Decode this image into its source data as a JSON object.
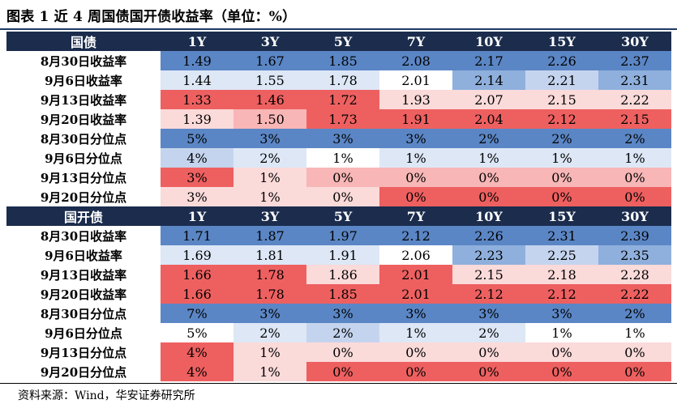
{
  "title": "图表 1  近 4 周国债国开债收益率（单位：%）",
  "source": "资料来源：Wind，华安证券研究所",
  "colors": {
    "header_bg": "#1b2c4d",
    "blue_dark": "#5b86c5",
    "blue_mid": "#8fb0dd",
    "blue_light": "#c5d4ee",
    "blue_pale": "#dde7f6",
    "white": "#ffffff",
    "red_pale": "#fbdada",
    "red_light": "#f8b6b6",
    "red_mid": "#f38e8e",
    "red_dark": "#ee6060"
  },
  "tables": [
    {
      "header": [
        "国债",
        "1Y",
        "3Y",
        "5Y",
        "7Y",
        "10Y",
        "15Y",
        "30Y"
      ],
      "rows": [
        {
          "label": "8月30日收益率",
          "cells": [
            {
              "v": "1.49",
              "c": "#5b86c5"
            },
            {
              "v": "1.67",
              "c": "#5b86c5"
            },
            {
              "v": "1.85",
              "c": "#5b86c5"
            },
            {
              "v": "2.08",
              "c": "#5b86c5"
            },
            {
              "v": "2.17",
              "c": "#5b86c5"
            },
            {
              "v": "2.26",
              "c": "#5b86c5"
            },
            {
              "v": "2.37",
              "c": "#5b86c5"
            }
          ]
        },
        {
          "label": "9月6日收益率",
          "cells": [
            {
              "v": "1.44",
              "c": "#dde7f6"
            },
            {
              "v": "1.55",
              "c": "#dde7f6"
            },
            {
              "v": "1.78",
              "c": "#dde7f6"
            },
            {
              "v": "2.01",
              "c": "#ffffff"
            },
            {
              "v": "2.14",
              "c": "#8fb0dd"
            },
            {
              "v": "2.21",
              "c": "#c5d4ee"
            },
            {
              "v": "2.31",
              "c": "#8fb0dd"
            }
          ]
        },
        {
          "label": "9月13日收益率",
          "cells": [
            {
              "v": "1.33",
              "c": "#ee6060"
            },
            {
              "v": "1.46",
              "c": "#ee6060"
            },
            {
              "v": "1.72",
              "c": "#ee6060"
            },
            {
              "v": "1.93",
              "c": "#fbdada"
            },
            {
              "v": "2.07",
              "c": "#fbdada"
            },
            {
              "v": "2.15",
              "c": "#fbdada"
            },
            {
              "v": "2.22",
              "c": "#fbdada"
            }
          ]
        },
        {
          "label": "9月20日收益率",
          "cells": [
            {
              "v": "1.39",
              "c": "#fbdada"
            },
            {
              "v": "1.50",
              "c": "#f8b6b6"
            },
            {
              "v": "1.73",
              "c": "#ee6060"
            },
            {
              "v": "1.91",
              "c": "#ee6060"
            },
            {
              "v": "2.04",
              "c": "#ee6060"
            },
            {
              "v": "2.12",
              "c": "#ee6060"
            },
            {
              "v": "2.15",
              "c": "#ee6060"
            }
          ]
        },
        {
          "label": "8月30日分位点",
          "cells": [
            {
              "v": "5%",
              "c": "#5b86c5"
            },
            {
              "v": "3%",
              "c": "#5b86c5"
            },
            {
              "v": "3%",
              "c": "#5b86c5"
            },
            {
              "v": "3%",
              "c": "#5b86c5"
            },
            {
              "v": "2%",
              "c": "#5b86c5"
            },
            {
              "v": "2%",
              "c": "#5b86c5"
            },
            {
              "v": "2%",
              "c": "#5b86c5"
            }
          ]
        },
        {
          "label": "9月6日分位点",
          "cells": [
            {
              "v": "4%",
              "c": "#c5d4ee"
            },
            {
              "v": "2%",
              "c": "#dde7f6"
            },
            {
              "v": "1%",
              "c": "#ffffff"
            },
            {
              "v": "1%",
              "c": "#dde7f6"
            },
            {
              "v": "1%",
              "c": "#dde7f6"
            },
            {
              "v": "1%",
              "c": "#dde7f6"
            },
            {
              "v": "1%",
              "c": "#dde7f6"
            }
          ]
        },
        {
          "label": "9月13日分位点",
          "cells": [
            {
              "v": "3%",
              "c": "#ee6060"
            },
            {
              "v": "1%",
              "c": "#fbdada"
            },
            {
              "v": "0%",
              "c": "#f8b6b6"
            },
            {
              "v": "0%",
              "c": "#f8b6b6"
            },
            {
              "v": "0%",
              "c": "#f8b6b6"
            },
            {
              "v": "0%",
              "c": "#f8b6b6"
            },
            {
              "v": "0%",
              "c": "#f8b6b6"
            }
          ]
        },
        {
          "label": "9月20日分位点",
          "cells": [
            {
              "v": "3%",
              "c": "#fbdada"
            },
            {
              "v": "1%",
              "c": "#fbdada"
            },
            {
              "v": "0%",
              "c": "#fbdada"
            },
            {
              "v": "0%",
              "c": "#ee6060"
            },
            {
              "v": "0%",
              "c": "#ee6060"
            },
            {
              "v": "0%",
              "c": "#ee6060"
            },
            {
              "v": "0%",
              "c": "#ee6060"
            }
          ]
        }
      ]
    },
    {
      "header": [
        "国开债",
        "1Y",
        "3Y",
        "5Y",
        "7Y",
        "10Y",
        "15Y",
        "30Y"
      ],
      "rows": [
        {
          "label": "8月30日收益率",
          "cells": [
            {
              "v": "1.71",
              "c": "#5b86c5"
            },
            {
              "v": "1.87",
              "c": "#5b86c5"
            },
            {
              "v": "1.97",
              "c": "#5b86c5"
            },
            {
              "v": "2.12",
              "c": "#5b86c5"
            },
            {
              "v": "2.26",
              "c": "#5b86c5"
            },
            {
              "v": "2.31",
              "c": "#5b86c5"
            },
            {
              "v": "2.39",
              "c": "#5b86c5"
            }
          ]
        },
        {
          "label": "9月6日收益率",
          "cells": [
            {
              "v": "1.69",
              "c": "#dde7f6"
            },
            {
              "v": "1.81",
              "c": "#dde7f6"
            },
            {
              "v": "1.91",
              "c": "#dde7f6"
            },
            {
              "v": "2.06",
              "c": "#ffffff"
            },
            {
              "v": "2.23",
              "c": "#8fb0dd"
            },
            {
              "v": "2.25",
              "c": "#c5d4ee"
            },
            {
              "v": "2.35",
              "c": "#8fb0dd"
            }
          ]
        },
        {
          "label": "9月13日收益率",
          "cells": [
            {
              "v": "1.66",
              "c": "#ee6060"
            },
            {
              "v": "1.78",
              "c": "#ee6060"
            },
            {
              "v": "1.86",
              "c": "#fbdada"
            },
            {
              "v": "2.01",
              "c": "#ee6060"
            },
            {
              "v": "2.15",
              "c": "#fbdada"
            },
            {
              "v": "2.18",
              "c": "#fbdada"
            },
            {
              "v": "2.28",
              "c": "#fbdada"
            }
          ]
        },
        {
          "label": "9月20日收益率",
          "cells": [
            {
              "v": "1.66",
              "c": "#ee6060"
            },
            {
              "v": "1.78",
              "c": "#ee6060"
            },
            {
              "v": "1.85",
              "c": "#ee6060"
            },
            {
              "v": "2.01",
              "c": "#ee6060"
            },
            {
              "v": "2.12",
              "c": "#ee6060"
            },
            {
              "v": "2.12",
              "c": "#ee6060"
            },
            {
              "v": "2.22",
              "c": "#ee6060"
            }
          ]
        },
        {
          "label": "8月30日分位点",
          "cells": [
            {
              "v": "7%",
              "c": "#5b86c5"
            },
            {
              "v": "3%",
              "c": "#5b86c5"
            },
            {
              "v": "3%",
              "c": "#5b86c5"
            },
            {
              "v": "3%",
              "c": "#5b86c5"
            },
            {
              "v": "3%",
              "c": "#5b86c5"
            },
            {
              "v": "3%",
              "c": "#5b86c5"
            },
            {
              "v": "2%",
              "c": "#5b86c5"
            }
          ]
        },
        {
          "label": "9月6日分位点",
          "cells": [
            {
              "v": "5%",
              "c": "#ffffff"
            },
            {
              "v": "2%",
              "c": "#dde7f6"
            },
            {
              "v": "2%",
              "c": "#c5d4ee"
            },
            {
              "v": "1%",
              "c": "#dde7f6"
            },
            {
              "v": "2%",
              "c": "#dde7f6"
            },
            {
              "v": "1%",
              "c": "#ffffff"
            },
            {
              "v": "1%",
              "c": "#ffffff"
            }
          ]
        },
        {
          "label": "9月13日分位点",
          "cells": [
            {
              "v": "4%",
              "c": "#ee6060"
            },
            {
              "v": "1%",
              "c": "#fbdada"
            },
            {
              "v": "0%",
              "c": "#fbdada"
            },
            {
              "v": "0%",
              "c": "#fbdada"
            },
            {
              "v": "0%",
              "c": "#fbdada"
            },
            {
              "v": "0%",
              "c": "#fbdada"
            },
            {
              "v": "0%",
              "c": "#fbdada"
            }
          ]
        },
        {
          "label": "9月20日分位点",
          "cells": [
            {
              "v": "4%",
              "c": "#ee6060"
            },
            {
              "v": "1%",
              "c": "#fbdada"
            },
            {
              "v": "0%",
              "c": "#ee6060"
            },
            {
              "v": "0%",
              "c": "#ee6060"
            },
            {
              "v": "0%",
              "c": "#ee6060"
            },
            {
              "v": "0%",
              "c": "#ee6060"
            },
            {
              "v": "0%",
              "c": "#ee6060"
            }
          ]
        }
      ]
    }
  ]
}
